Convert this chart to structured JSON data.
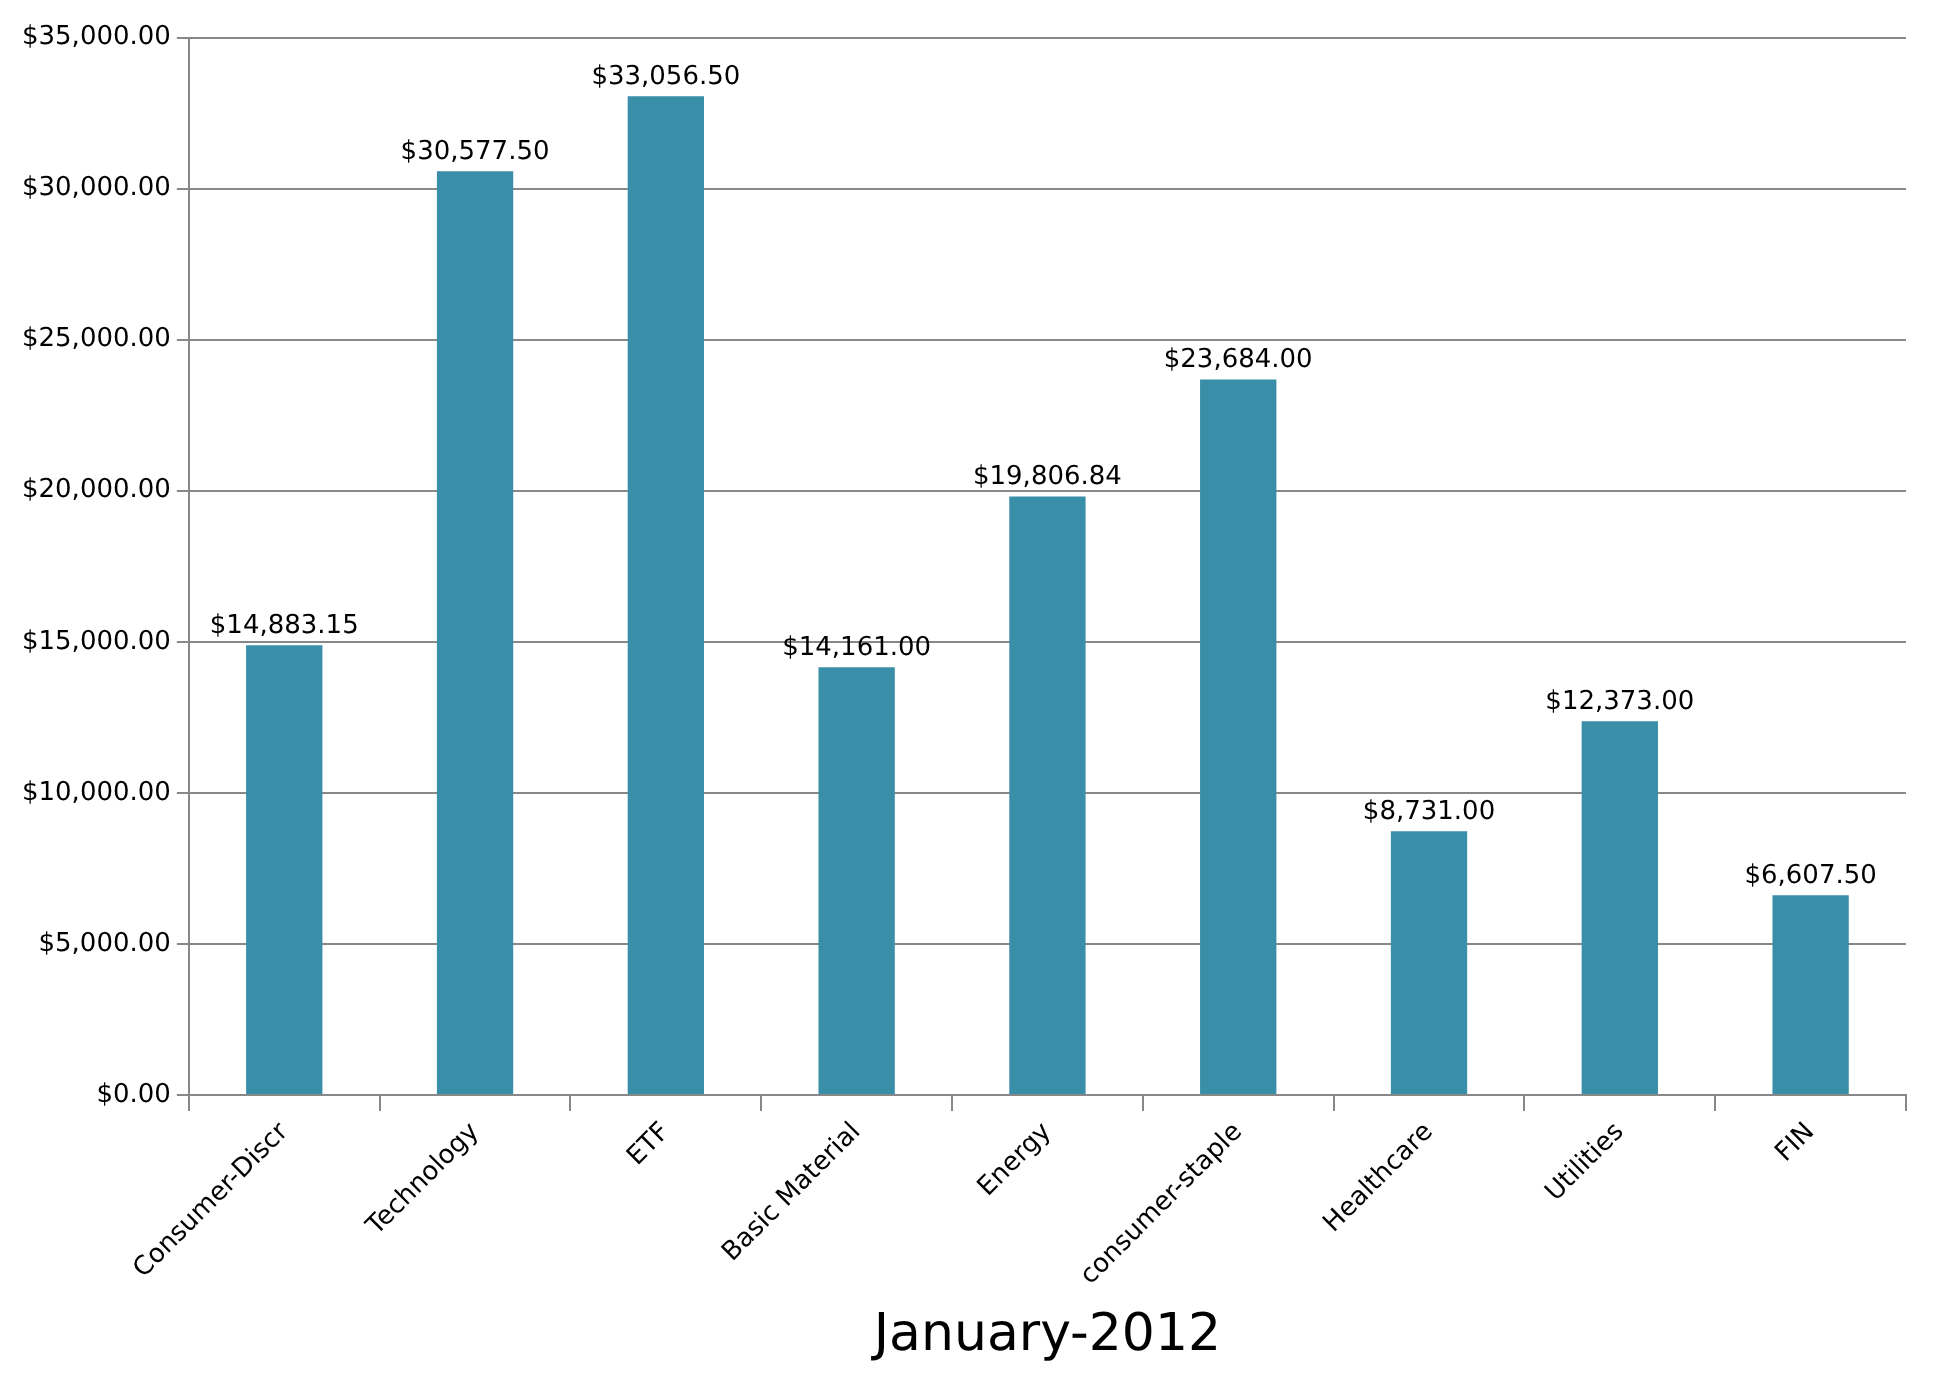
{
  "chart_data": {
    "type": "bar",
    "xlabel": "January-2012",
    "categories": [
      "Consumer-Discr",
      "Technology",
      "ETF",
      "Basic Material",
      "Energy",
      "consumer-staple",
      "Healthcare",
      "Utilities",
      "FIN"
    ],
    "values": [
      14883.15,
      30577.5,
      33056.5,
      14161,
      19806.84,
      23684,
      8731,
      12373,
      6607.5
    ],
    "value_labels": [
      "$14,883.15",
      "$30,577.50",
      "$33,056.50",
      "$14,161.00",
      "$19,806.84",
      "$23,684.00",
      "$8,731.00",
      "$12,373.00",
      "$6,607.50"
    ],
    "color": "#3a8fa8",
    "ylim": [
      0,
      35000
    ],
    "yticks": [
      {
        "value": 0,
        "label": "$0.00"
      },
      {
        "value": 5000,
        "label": "$5,000.00"
      },
      {
        "value": 10000,
        "label": "$10,000.00"
      },
      {
        "value": 15000,
        "label": "$15,000.00"
      },
      {
        "value": 20000,
        "label": "$20,000.00"
      },
      {
        "value": 25000,
        "label": "$25,000.00"
      },
      {
        "value": 30000,
        "label": "$30,000.00"
      },
      {
        "value": 35000,
        "label": "$35,000.00"
      }
    ],
    "grid": "y",
    "legend": false
  }
}
